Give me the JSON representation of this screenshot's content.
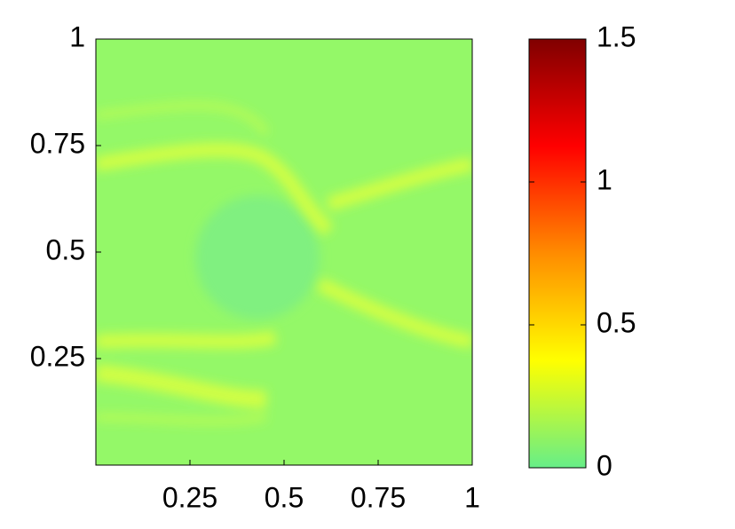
{
  "chart_data": {
    "type": "heatmap",
    "xlim": [
      0,
      1
    ],
    "xticks": [
      0.25,
      0.5,
      0.75,
      1
    ],
    "ylim": [
      0,
      1
    ],
    "yticks": [
      0.25,
      0.5,
      0.75,
      1
    ],
    "clim": [
      0,
      1.5
    ],
    "cticks": [
      0,
      0.5,
      1,
      1.5
    ],
    "colormap": [
      "#66ee88",
      "#ffff00",
      "#ff8c00",
      "#ff0000",
      "#800000"
    ]
  }
}
